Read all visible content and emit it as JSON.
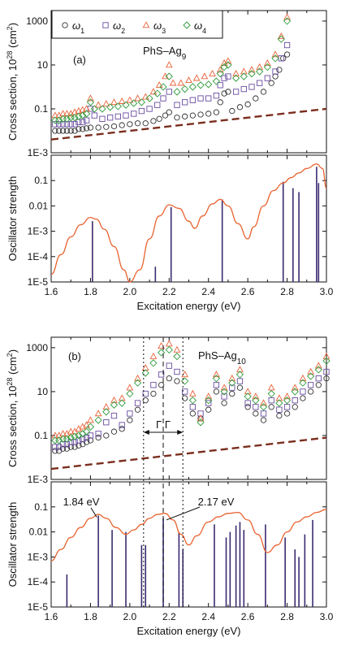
{
  "chart_data": [
    {
      "panel": "(a)",
      "type": "scatter",
      "annotation": "PhS–Ag9",
      "annotation_base": "PhS–Ag",
      "annotation_sub": "9",
      "ylabel_base": "Cross section, 10",
      "ylabel_sup": "28",
      "ylabel_unit": "(cm",
      "ylabel_unit_sup": "2",
      "ylabel_end": ")",
      "ylim": [
        0.001,
        3000
      ],
      "yscale": "log",
      "yticks": [
        "1E-3",
        "0.1",
        "10",
        "1000"
      ],
      "legend": [
        {
          "symbol": "ω",
          "sub": "1",
          "marker": "circle",
          "color": "#303030"
        },
        {
          "symbol": "ω",
          "sub": "2",
          "marker": "square",
          "color": "#6a4ca0"
        },
        {
          "symbol": "ω",
          "sub": "3",
          "marker": "triangle",
          "color": "#e8633a"
        },
        {
          "symbol": "ω",
          "sub": "4",
          "marker": "diamond",
          "color": "#2e9a3a"
        }
      ],
      "reference_line": {
        "style": "dashed",
        "color": "#7a2e1e",
        "x": [
          1.6,
          3.0
        ],
        "y": [
          0.004,
          0.1
        ]
      },
      "series": [
        {
          "marker": "circle",
          "x": [
            1.62,
            1.64,
            1.66,
            1.68,
            1.7,
            1.72,
            1.74,
            1.76,
            1.78,
            1.8,
            1.84,
            1.88,
            1.92,
            1.96,
            2.0,
            2.04,
            2.08,
            2.12,
            2.15,
            2.18,
            2.2,
            2.24,
            2.28,
            2.32,
            2.36,
            2.4,
            2.44,
            2.46,
            2.48,
            2.5,
            2.52,
            2.56,
            2.6,
            2.64,
            2.68,
            2.72,
            2.74,
            2.76,
            2.78,
            2.8
          ],
          "y": [
            0.01,
            0.01,
            0.01,
            0.01,
            0.01,
            0.01,
            0.012,
            0.012,
            0.013,
            0.014,
            0.014,
            0.015,
            0.016,
            0.018,
            0.02,
            0.022,
            0.022,
            0.028,
            0.035,
            0.05,
            0.07,
            0.04,
            0.045,
            0.05,
            0.055,
            0.06,
            0.07,
            0.2,
            0.5,
            0.6,
            0.08,
            0.12,
            0.16,
            0.3,
            0.6,
            1.5,
            3,
            6,
            20,
            30
          ]
        },
        {
          "marker": "square",
          "x": [
            1.62,
            1.64,
            1.66,
            1.68,
            1.7,
            1.72,
            1.74,
            1.76,
            1.78,
            1.8,
            1.82,
            1.86,
            1.9,
            1.94,
            1.98,
            2.02,
            2.06,
            2.1,
            2.14,
            2.17,
            2.2,
            2.24,
            2.28,
            2.32,
            2.36,
            2.4,
            2.44,
            2.46,
            2.48,
            2.5,
            2.54,
            2.58,
            2.62,
            2.66,
            2.7,
            2.74,
            2.77,
            2.8
          ],
          "y": [
            0.02,
            0.02,
            0.02,
            0.02,
            0.02,
            0.02,
            0.025,
            0.025,
            0.03,
            0.1,
            0.05,
            0.035,
            0.04,
            0.045,
            0.05,
            0.06,
            0.08,
            0.1,
            0.15,
            0.3,
            0.6,
            0.15,
            0.2,
            0.25,
            0.3,
            0.3,
            0.4,
            1.2,
            2.5,
            3,
            0.6,
            0.8,
            1,
            1.5,
            2.5,
            5,
            20,
            80
          ]
        },
        {
          "marker": "triangle",
          "x": [
            1.62,
            1.64,
            1.66,
            1.68,
            1.7,
            1.72,
            1.74,
            1.76,
            1.78,
            1.8,
            1.84,
            1.88,
            1.92,
            1.96,
            2.0,
            2.04,
            2.08,
            2.12,
            2.15,
            2.18,
            2.2,
            2.22,
            2.26,
            2.3,
            2.34,
            2.38,
            2.42,
            2.46,
            2.48,
            2.5,
            2.54,
            2.58,
            2.62,
            2.66,
            2.7,
            2.74,
            2.77,
            2.8
          ],
          "y": [
            0.05,
            0.05,
            0.06,
            0.06,
            0.06,
            0.07,
            0.08,
            0.09,
            0.1,
            0.3,
            0.15,
            0.17,
            0.2,
            0.22,
            0.25,
            0.3,
            0.35,
            0.6,
            1.2,
            3,
            10,
            1.5,
            1.5,
            2,
            2.5,
            3,
            4,
            6,
            12,
            15,
            4,
            5,
            6,
            8,
            12,
            30,
            200,
            1500
          ]
        },
        {
          "marker": "diamond",
          "x": [
            1.62,
            1.64,
            1.66,
            1.68,
            1.7,
            1.72,
            1.74,
            1.76,
            1.78,
            1.8,
            1.82,
            1.86,
            1.9,
            1.94,
            1.98,
            2.02,
            2.06,
            2.1,
            2.14,
            2.17,
            2.2,
            2.24,
            2.28,
            2.32,
            2.36,
            2.4,
            2.44,
            2.46,
            2.48,
            2.5,
            2.54,
            2.58,
            2.62,
            2.66,
            2.7,
            2.74,
            2.77,
            2.8
          ],
          "y": [
            0.03,
            0.03,
            0.035,
            0.035,
            0.04,
            0.04,
            0.045,
            0.05,
            0.06,
            0.2,
            0.1,
            0.1,
            0.12,
            0.13,
            0.15,
            0.18,
            0.2,
            0.3,
            0.5,
            1,
            3,
            0.6,
            0.8,
            1,
            1.2,
            1.3,
            1.8,
            4,
            8,
            10,
            2.5,
            3,
            4,
            5,
            8,
            20,
            150,
            1000
          ]
        }
      ]
    },
    {
      "panel": "(a) lower",
      "type": "line",
      "ylabel": "Oscillator strength",
      "xlabel": "Excitation energy (eV)",
      "xlim": [
        1.6,
        3.0
      ],
      "xticks": [
        "1.6",
        "1.8",
        "2.0",
        "2.2",
        "2.4",
        "2.6",
        "2.8",
        "3.0"
      ],
      "ylim": [
        1e-05,
        1
      ],
      "yscale": "log",
      "yticks": [
        "1E-5",
        "1E-4",
        "1E-3",
        "0.01",
        "0.1"
      ],
      "envelope": {
        "color": "#e8632f",
        "x": [
          1.6,
          1.65,
          1.7,
          1.75,
          1.8,
          1.83,
          1.87,
          1.92,
          1.97,
          2.0,
          2.05,
          2.1,
          2.15,
          2.2,
          2.25,
          2.3,
          2.33,
          2.37,
          2.42,
          2.46,
          2.5,
          2.55,
          2.6,
          2.63,
          2.68,
          2.73,
          2.78,
          2.82,
          2.86,
          2.9,
          2.95,
          2.98,
          3.0
        ],
        "y": [
          2e-05,
          0.00012,
          0.0006,
          0.0018,
          0.0035,
          0.003,
          0.0012,
          0.00025,
          3e-05,
          1e-05,
          3e-05,
          0.0005,
          0.004,
          0.011,
          0.008,
          0.0025,
          0.0013,
          0.004,
          0.012,
          0.018,
          0.01,
          0.002,
          0.0005,
          0.0015,
          0.01,
          0.04,
          0.08,
          0.13,
          0.2,
          0.3,
          0.45,
          0.3,
          0.05
        ]
      },
      "sticks": {
        "color": "#3b2a70",
        "x": [
          1.81,
          2.13,
          2.21,
          2.47,
          2.78,
          2.83,
          2.86,
          2.95,
          2.96
        ],
        "y": [
          0.0025,
          4e-05,
          0.009,
          0.018,
          0.09,
          0.05,
          0.035,
          0.35,
          0.08
        ]
      }
    },
    {
      "panel": "(b)",
      "type": "scatter",
      "annotation": "PhS–Ag10",
      "annotation_base": "PhS–Ag",
      "annotation_sub": "10",
      "ylabel_base": "Cross section, 10",
      "ylabel_sup": "28",
      "ylabel_unit": "(cm",
      "ylabel_unit_sup": "2",
      "ylabel_end": ")",
      "ylim": [
        0.001,
        3000
      ],
      "yscale": "log",
      "yticks": [
        "1E-3",
        "0.1",
        "10",
        "1000"
      ],
      "gamma_label": "Γ Γ",
      "dotted_x": [
        2.07,
        2.27
      ],
      "dashed_x": [
        2.17
      ],
      "reference_line": {
        "style": "dashed",
        "color": "#7a2e1e",
        "x": [
          1.6,
          3.0
        ],
        "y": [
          0.003,
          0.08
        ]
      },
      "series": [
        {
          "marker": "circle",
          "x": [
            1.62,
            1.64,
            1.66,
            1.68,
            1.7,
            1.72,
            1.74,
            1.76,
            1.78,
            1.8,
            1.84,
            1.88,
            1.92,
            1.96,
            2.0,
            2.04,
            2.08,
            2.12,
            2.16,
            2.2,
            2.24,
            2.28,
            2.32,
            2.36,
            2.4,
            2.44,
            2.48,
            2.52,
            2.56,
            2.6,
            2.64,
            2.68,
            2.72,
            2.76,
            2.8,
            2.84,
            2.88,
            2.92,
            2.96,
            3.0
          ],
          "y": [
            0.02,
            0.02,
            0.025,
            0.025,
            0.03,
            0.03,
            0.035,
            0.04,
            0.05,
            0.06,
            0.08,
            0.1,
            0.15,
            0.2,
            0.5,
            1.5,
            4,
            8,
            20,
            40,
            30,
            5,
            1,
            0.6,
            1.5,
            10,
            3,
            8,
            15,
            2,
            1,
            0.5,
            2,
            0.8,
            1,
            2,
            5,
            10,
            20,
            40
          ]
        },
        {
          "marker": "square",
          "x": [
            1.62,
            1.64,
            1.66,
            1.68,
            1.7,
            1.72,
            1.74,
            1.76,
            1.78,
            1.8,
            1.84,
            1.88,
            1.92,
            1.96,
            2.0,
            2.04,
            2.08,
            2.12,
            2.16,
            2.2,
            2.24,
            2.28,
            2.32,
            2.36,
            2.4,
            2.44,
            2.48,
            2.52,
            2.56,
            2.6,
            2.64,
            2.68,
            2.72,
            2.76,
            2.8,
            2.84,
            2.88,
            2.92,
            2.96,
            3.0
          ],
          "y": [
            0.03,
            0.03,
            0.04,
            0.04,
            0.05,
            0.05,
            0.06,
            0.07,
            0.08,
            0.1,
            0.12,
            0.4,
            0.8,
            0.3,
            1,
            3,
            8,
            20,
            60,
            150,
            80,
            10,
            2,
            1,
            3,
            20,
            6,
            15,
            30,
            3,
            2,
            1,
            4,
            1.5,
            2,
            4,
            10,
            20,
            40,
            80
          ]
        },
        {
          "marker": "triangle",
          "x": [
            1.62,
            1.64,
            1.66,
            1.68,
            1.7,
            1.72,
            1.74,
            1.76,
            1.78,
            1.8,
            1.84,
            1.88,
            1.92,
            1.96,
            2.0,
            2.04,
            2.08,
            2.12,
            2.16,
            2.2,
            2.24,
            2.28,
            2.32,
            2.36,
            2.4,
            2.44,
            2.48,
            2.52,
            2.56,
            2.6,
            2.64,
            2.68,
            2.72,
            2.76,
            2.8,
            2.84,
            2.88,
            2.92,
            2.96,
            3.0
          ],
          "y": [
            0.1,
            0.1,
            0.12,
            0.12,
            0.15,
            0.15,
            0.2,
            0.25,
            0.3,
            0.5,
            1,
            2,
            4,
            5,
            15,
            40,
            120,
            400,
            1200,
            1500,
            800,
            60,
            8,
            0.6,
            6,
            60,
            15,
            40,
            100,
            10,
            6,
            3,
            15,
            5,
            6,
            15,
            40,
            80,
            150,
            400
          ]
        },
        {
          "marker": "diamond",
          "x": [
            1.62,
            1.64,
            1.66,
            1.68,
            1.7,
            1.72,
            1.74,
            1.76,
            1.78,
            1.8,
            1.84,
            1.88,
            1.92,
            1.96,
            2.0,
            2.04,
            2.08,
            2.12,
            2.16,
            2.2,
            2.24,
            2.28,
            2.32,
            2.36,
            2.4,
            2.44,
            2.48,
            2.52,
            2.56,
            2.6,
            2.64,
            2.68,
            2.72,
            2.76,
            2.8,
            2.84,
            2.88,
            2.92,
            2.96,
            3.0
          ],
          "y": [
            0.06,
            0.06,
            0.07,
            0.07,
            0.08,
            0.09,
            0.1,
            0.12,
            0.15,
            0.25,
            0.5,
            1.2,
            2.5,
            3,
            8,
            25,
            70,
            200,
            600,
            800,
            400,
            30,
            4,
            0.4,
            4,
            40,
            10,
            25,
            60,
            6,
            4,
            2,
            8,
            3,
            4,
            10,
            25,
            50,
            100,
            250
          ]
        }
      ]
    },
    {
      "panel": "(b) lower",
      "type": "line",
      "ylabel": "Oscillator strength",
      "xlabel": "Excitation energy (eV)",
      "xlim": [
        1.6,
        3.0
      ],
      "xticks": [
        "1.6",
        "1.8",
        "2.0",
        "2.2",
        "2.4",
        "2.6",
        "2.8",
        "3.0"
      ],
      "ylim": [
        1e-05,
        1
      ],
      "yscale": "log",
      "yticks": [
        "1E-5",
        "1E-4",
        "1E-3",
        "0.01",
        "0.1"
      ],
      "annotations": [
        {
          "text": "1.84 eV",
          "x": 1.84
        },
        {
          "text": "2.17 eV",
          "x": 2.17
        }
      ],
      "dotted_x": [
        2.07,
        2.27
      ],
      "dashed_x": [
        2.17
      ],
      "envelope": {
        "color": "#e8632f",
        "x": [
          1.6,
          1.65,
          1.7,
          1.75,
          1.8,
          1.84,
          1.88,
          1.93,
          1.98,
          2.02,
          2.06,
          2.1,
          2.14,
          2.18,
          2.22,
          2.26,
          2.3,
          2.34,
          2.4,
          2.45,
          2.5,
          2.55,
          2.6,
          2.65,
          2.7,
          2.75,
          2.8,
          2.85,
          2.9,
          2.95,
          3.0
        ],
        "y": [
          0.0007,
          0.002,
          0.006,
          0.015,
          0.035,
          0.05,
          0.035,
          0.015,
          0.008,
          0.012,
          0.02,
          0.035,
          0.05,
          0.055,
          0.03,
          0.008,
          0.003,
          0.007,
          0.025,
          0.04,
          0.055,
          0.06,
          0.03,
          0.008,
          0.0015,
          0.003,
          0.01,
          0.025,
          0.04,
          0.06,
          0.08
        ]
      },
      "sticks": {
        "color": "#3b2a70",
        "x": [
          1.68,
          1.84,
          1.91,
          1.98,
          2.06,
          2.08,
          2.17,
          2.25,
          2.27,
          2.43,
          2.49,
          2.51,
          2.54,
          2.56,
          2.58,
          2.69,
          2.79,
          2.84,
          2.86,
          2.89,
          2.93
        ],
        "y": [
          0.0002,
          0.045,
          0.012,
          0.01,
          0.003,
          0.003,
          0.035,
          0.01,
          0.002,
          0.02,
          0.006,
          0.01,
          0.018,
          0.025,
          0.012,
          0.02,
          0.006,
          0.002,
          0.001,
          0.008,
          0.03
        ]
      }
    }
  ]
}
